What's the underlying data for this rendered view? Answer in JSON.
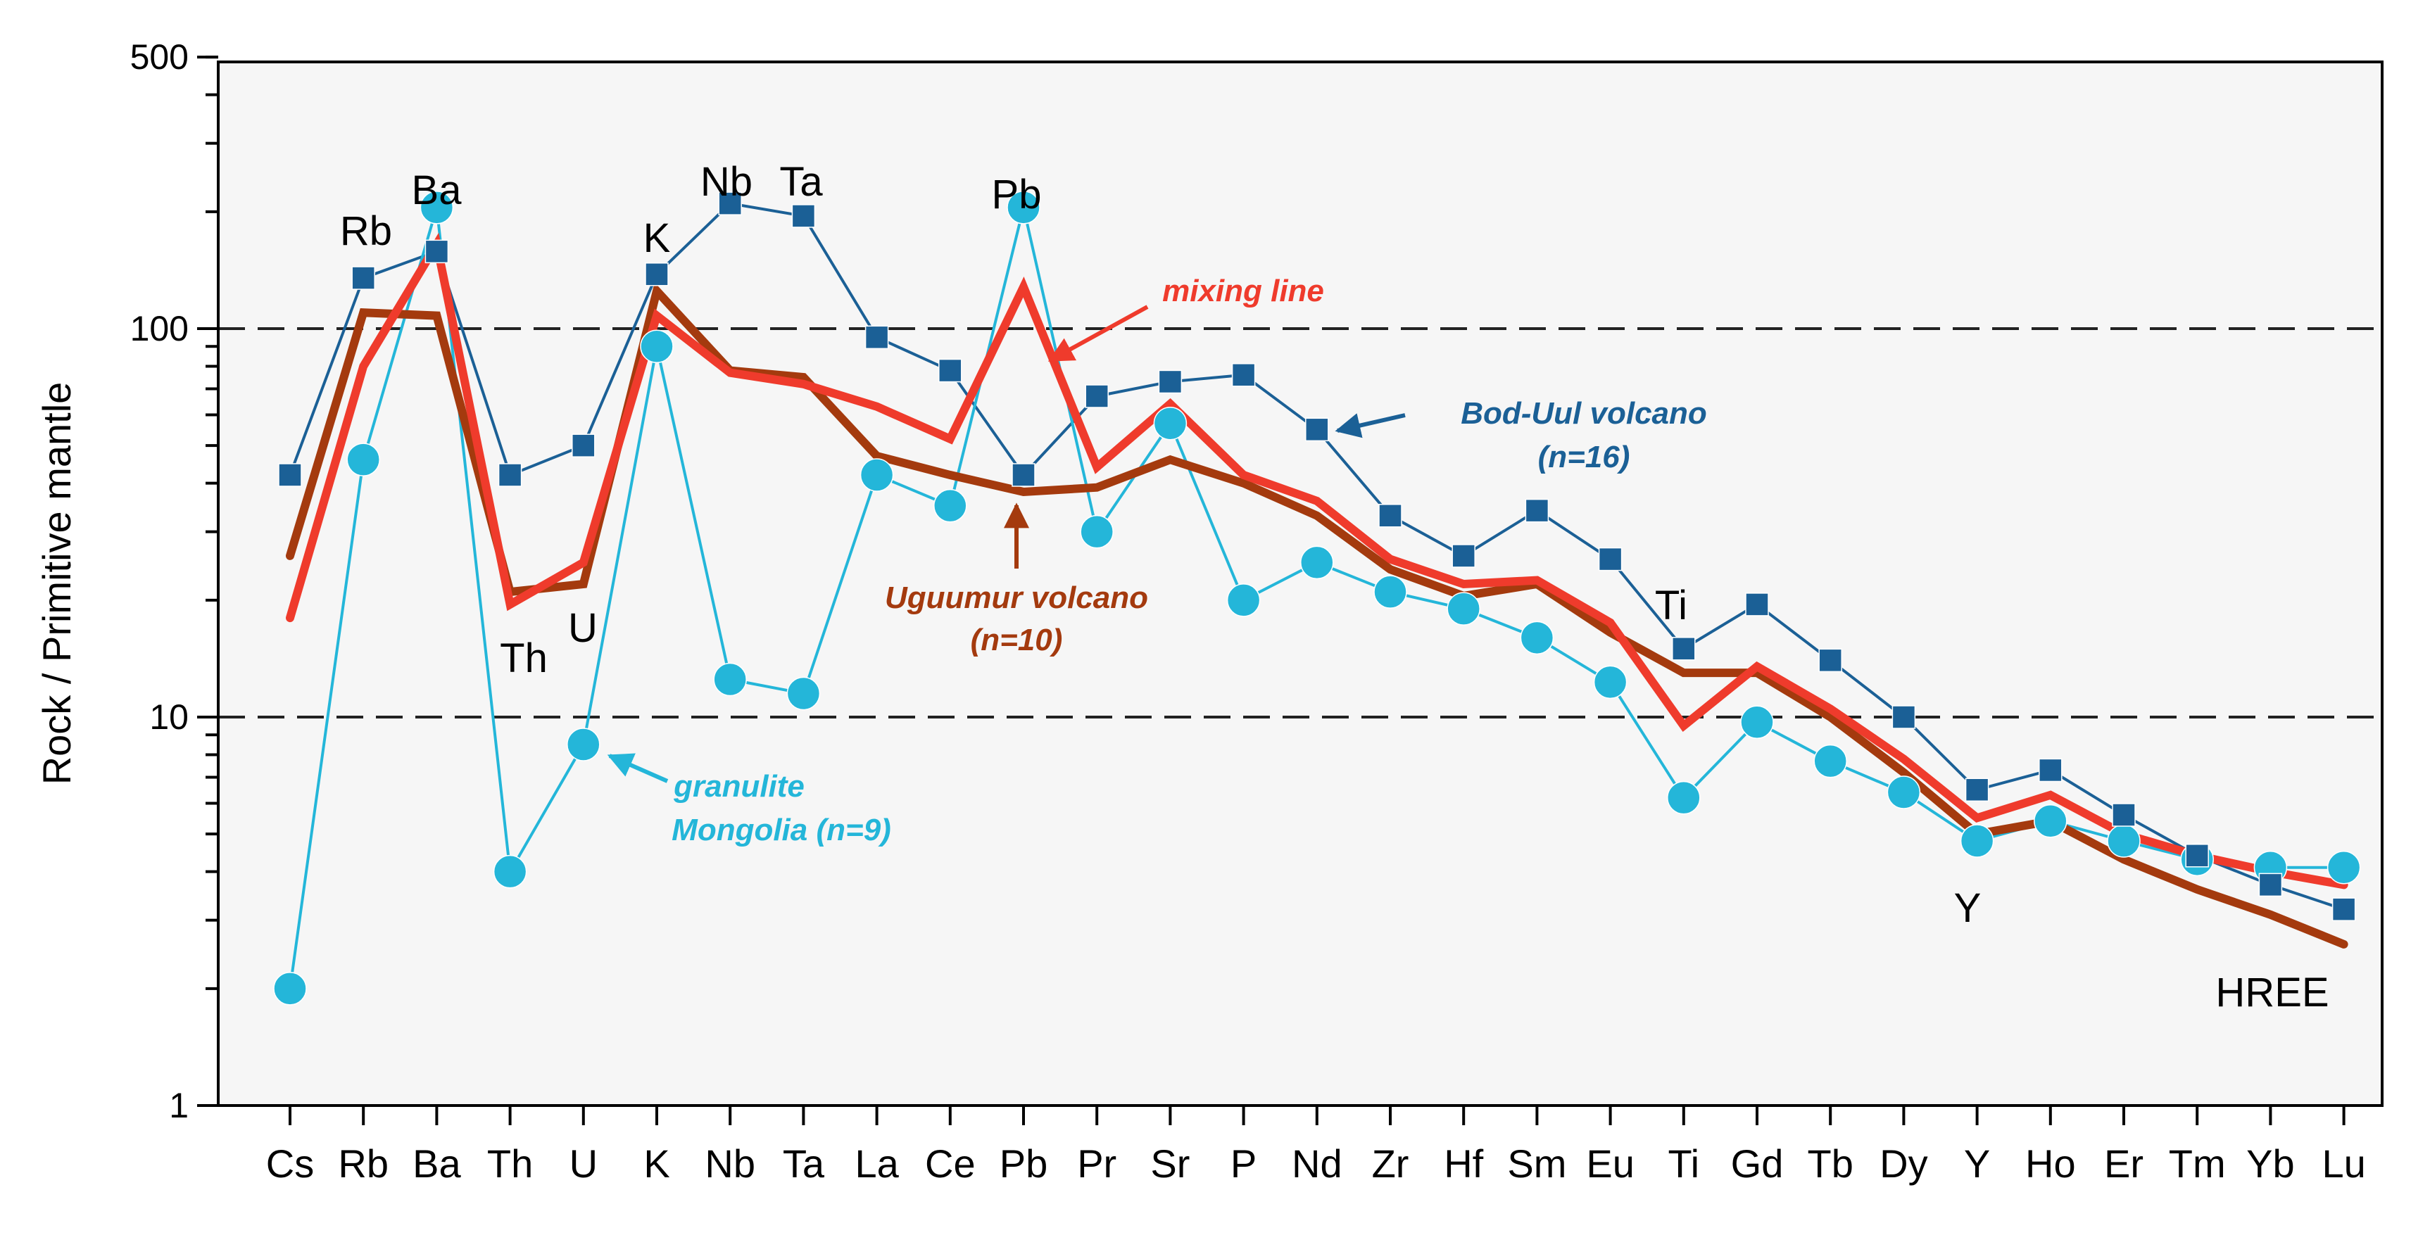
{
  "chart_data": {
    "type": "line",
    "title": "",
    "xlabel": "",
    "ylabel": "Rock / Primitive mantle",
    "yscale": "log",
    "ylim": [
      1,
      500
    ],
    "yticks": [
      {
        "value": 1,
        "label": "1"
      },
      {
        "value": 10,
        "label": "10"
      },
      {
        "value": 100,
        "label": "100"
      },
      {
        "value": 500,
        "label": "500"
      }
    ],
    "reference_lines": [
      10,
      100
    ],
    "categories": [
      "Cs",
      "Rb",
      "Ba",
      "Th",
      "U",
      "K",
      "Nb",
      "Ta",
      "La",
      "Ce",
      "Pb",
      "Pr",
      "Sr",
      "P",
      "Nd",
      "Zr",
      "Hf",
      "Sm",
      "Eu",
      "Ti",
      "Gd",
      "Tb",
      "Dy",
      "Y",
      "Ho",
      "Er",
      "Tm",
      "Yb",
      "Lu"
    ],
    "colors": {
      "bodUul": "#1b6096",
      "granulite": "#24b6d9",
      "uguumur": "#a43a0e",
      "mixing": "#ef3b2c",
      "plot_bg": "#f6f6f6"
    },
    "series": [
      {
        "name": "Bod-Uul volcano (n=16)",
        "marker": "square",
        "values": [
          42,
          135,
          158,
          42,
          50,
          138,
          210,
          195,
          95,
          78,
          42,
          67,
          73,
          76,
          55,
          33,
          26,
          34,
          25.5,
          15,
          19.5,
          14,
          10,
          6.5,
          7.3,
          5.6,
          4.4,
          3.7,
          3.2
        ]
      },
      {
        "name": "granulite Mongolia (n=9)",
        "marker": "circle",
        "values": [
          2,
          46,
          205,
          4,
          8.5,
          90,
          12.5,
          11.5,
          42,
          35,
          205,
          30,
          57,
          20,
          25,
          21,
          19,
          16,
          12.3,
          6.2,
          9.7,
          7.7,
          6.4,
          4.8,
          5.4,
          4.8,
          4.3,
          4.1,
          4.1
        ]
      },
      {
        "name": "Uguumur volcano (n=10)",
        "marker": "none",
        "values": [
          26,
          110,
          108,
          21,
          22,
          125,
          78,
          75,
          47,
          42,
          38,
          39,
          46,
          40,
          33,
          24,
          20.5,
          22,
          16.5,
          13,
          13,
          10,
          7.2,
          5,
          5.4,
          4.3,
          3.6,
          3.1,
          2.6
        ]
      },
      {
        "name": "mixing line",
        "marker": "none",
        "values": [
          18,
          80,
          165,
          19.5,
          25,
          108,
          77,
          72,
          63,
          52,
          128,
          44,
          64,
          42,
          36,
          25.5,
          22,
          22.5,
          17.5,
          9.5,
          13.5,
          10.5,
          7.8,
          5.5,
          6.3,
          5,
          4.4,
          4,
          3.7
        ]
      }
    ],
    "annotations": {
      "element_labels": [
        "Rb",
        "Ba",
        "K",
        "Nb",
        "Ta",
        "Pb",
        "Th",
        "U",
        "Ti",
        "Y",
        "HREE"
      ],
      "legend_labels": {
        "mixing": "mixing line",
        "bodUul_line1": "Bod-Uul volcano",
        "bodUul_line2": "(n=16)",
        "uguumur_line1": "Uguumur volcano",
        "uguumur_line2": "(n=10)",
        "granulite_line1": "granulite",
        "granulite_line2": "Mongolia (n=9)"
      }
    }
  }
}
